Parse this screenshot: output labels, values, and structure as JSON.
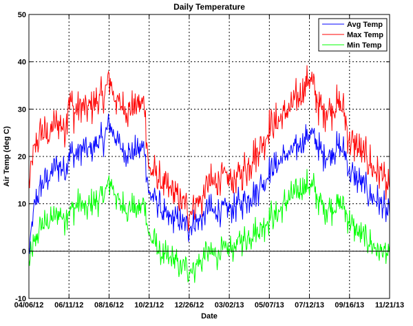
{
  "chart_data": {
    "type": "line",
    "title": "Daily Temperature",
    "xlabel": "Date",
    "ylabel": "Air Temp (deg C)",
    "ylim": [
      -10,
      50
    ],
    "yticks": [
      -10,
      0,
      10,
      20,
      30,
      40,
      50
    ],
    "xlim": [
      0,
      594
    ],
    "xticks": [
      {
        "day": 0,
        "label": "04/06/12"
      },
      {
        "day": 66,
        "label": "06/11/12"
      },
      {
        "day": 132,
        "label": "08/16/12"
      },
      {
        "day": 198,
        "label": "10/21/12"
      },
      {
        "day": 264,
        "label": "12/26/12"
      },
      {
        "day": 330,
        "label": "03/02/13"
      },
      {
        "day": 396,
        "label": "05/07/13"
      },
      {
        "day": 462,
        "label": "07/12/13"
      },
      {
        "day": 528,
        "label": "09/16/13"
      },
      {
        "day": 594,
        "label": "11/21/13"
      }
    ],
    "grid": true,
    "zero_line": true,
    "legend_position": "top-right",
    "series": [
      {
        "name": "Avg Temp",
        "color": "#0000ff",
        "key": "avg"
      },
      {
        "name": "Max Temp",
        "color": "#ff0000",
        "key": "max"
      },
      {
        "name": "Min Temp",
        "color": "#00ff00",
        "key": "min"
      }
    ],
    "anchors": {
      "days": [
        0,
        10,
        20,
        30,
        40,
        50,
        60,
        66,
        75,
        85,
        95,
        105,
        115,
        125,
        132,
        140,
        150,
        160,
        170,
        180,
        190,
        198,
        210,
        220,
        230,
        240,
        250,
        264,
        275,
        285,
        295,
        305,
        315,
        330,
        345,
        360,
        375,
        390,
        396,
        410,
        420,
        430,
        440,
        450,
        462,
        470,
        480,
        490,
        500,
        510,
        520,
        528,
        540,
        550,
        560,
        570,
        580,
        594
      ],
      "avg": [
        0,
        10,
        14,
        15,
        17,
        18,
        17,
        21,
        20,
        22,
        21,
        22,
        23,
        24,
        27,
        25,
        22,
        21,
        21,
        21,
        22,
        12,
        11,
        8,
        7,
        7,
        6,
        5,
        6,
        7,
        9,
        8,
        9,
        9,
        10,
        11,
        13,
        15,
        17,
        18,
        20,
        21,
        22,
        23,
        25,
        24,
        21,
        20,
        21,
        22,
        21,
        17,
        15,
        14,
        12,
        11,
        10,
        7
      ],
      "max": [
        14,
        22,
        25,
        24,
        26,
        27,
        26,
        33,
        29,
        31,
        30,
        31,
        32,
        33,
        37,
        33,
        31,
        30,
        30,
        31,
        31,
        17,
        16,
        14,
        13,
        12,
        11,
        8,
        10,
        11,
        14,
        14,
        16,
        15,
        16,
        18,
        21,
        24,
        26,
        27,
        29,
        30,
        32,
        33,
        37,
        34,
        30,
        30,
        30,
        31,
        29,
        23,
        22,
        20,
        19,
        17,
        17,
        12
      ],
      "min": [
        -3,
        2,
        5,
        6,
        7,
        8,
        7,
        9,
        9,
        10,
        9,
        10,
        11,
        12,
        15,
        13,
        10,
        9,
        9,
        9,
        10,
        3,
        1,
        -1,
        -2,
        -2,
        -3,
        -4,
        -3,
        -2,
        0,
        -1,
        0,
        0,
        2,
        3,
        4,
        6,
        7,
        8,
        10,
        11,
        12,
        13,
        14,
        13,
        10,
        9,
        9,
        10,
        9,
        6,
        4,
        3,
        2,
        1,
        0,
        -1
      ]
    },
    "noise_amplitude": {
      "avg": 4,
      "max": 5,
      "min": 4
    }
  }
}
